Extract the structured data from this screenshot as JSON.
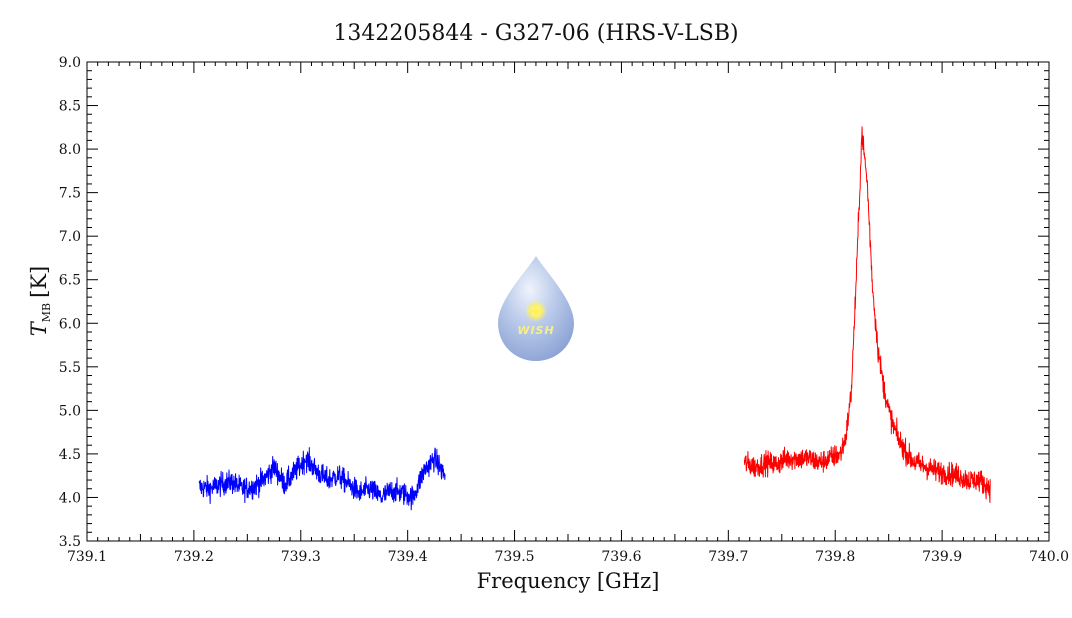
{
  "chart_data": {
    "type": "line",
    "title": "1342205844 - G327-06 (HRS-V-LSB)",
    "xlabel": "Frequency [GHz]",
    "ylabel_main": "T",
    "ylabel_sub": "MB",
    "ylabel_unit": "[K]",
    "xlim": [
      739.1,
      740.0
    ],
    "ylim": [
      3.5,
      9.0
    ],
    "x_ticks": [
      "739.1",
      "739.2",
      "739.3",
      "739.4",
      "739.5",
      "739.6",
      "739.7",
      "739.8",
      "739.9",
      "740.0"
    ],
    "y_ticks": [
      "3.5",
      "4.0",
      "4.5",
      "5.0",
      "5.5",
      "6.0",
      "6.5",
      "7.0",
      "7.5",
      "8.0",
      "8.5",
      "9.0"
    ],
    "grid": false,
    "series": [
      {
        "color": "#0000ff",
        "x": [
          739.205,
          739.215,
          739.225,
          739.235,
          739.245,
          739.255,
          739.265,
          739.275,
          739.285,
          739.295,
          739.305,
          739.315,
          739.325,
          739.335,
          739.345,
          739.355,
          739.365,
          739.375,
          739.385,
          739.395,
          739.405,
          739.415,
          739.425,
          739.435
        ],
        "y": [
          4.12,
          4.1,
          4.15,
          4.18,
          4.1,
          4.12,
          4.2,
          4.35,
          4.15,
          4.3,
          4.45,
          4.3,
          4.2,
          4.25,
          4.15,
          4.05,
          4.1,
          4.0,
          4.08,
          4.05,
          4.0,
          4.3,
          4.45,
          4.25
        ]
      },
      {
        "color": "#ff0000",
        "x": [
          739.715,
          739.725,
          739.735,
          739.745,
          739.755,
          739.765,
          739.775,
          739.785,
          739.795,
          739.805,
          739.81,
          739.815,
          739.82,
          739.825,
          739.83,
          739.835,
          739.84,
          739.845,
          739.85,
          739.855,
          739.86,
          739.865,
          739.87,
          739.875,
          739.885,
          739.895,
          739.905,
          739.915,
          739.925,
          739.935,
          739.945
        ],
        "y": [
          4.4,
          4.35,
          4.4,
          4.38,
          4.45,
          4.45,
          4.45,
          4.4,
          4.45,
          4.5,
          4.7,
          5.2,
          6.6,
          8.2,
          7.6,
          6.4,
          5.7,
          5.3,
          5.0,
          4.8,
          4.65,
          4.55,
          4.45,
          4.4,
          4.35,
          4.3,
          4.28,
          4.25,
          4.2,
          4.2,
          4.1
        ]
      }
    ],
    "logo_text": "WISH",
    "logo_colors": {
      "drop": "#8fa8da",
      "drop_light": "#dfe7f5",
      "star": "#fff25a",
      "text": "#f4ef8a"
    }
  }
}
